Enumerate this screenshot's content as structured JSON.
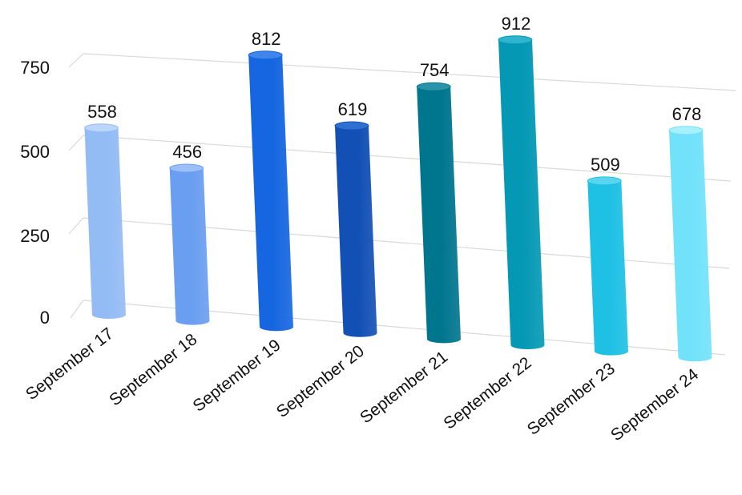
{
  "chart_data": {
    "type": "bar",
    "style": "3d-cylinder",
    "categories": [
      "September 17",
      "September 18",
      "September 19",
      "September 20",
      "September 21",
      "September 22",
      "September 23",
      "September 24"
    ],
    "values": [
      558,
      456,
      812,
      619,
      754,
      912,
      509,
      678
    ],
    "data_labels": [
      "558",
      "456",
      "812",
      "619",
      "754",
      "912",
      "509",
      "678"
    ],
    "yticks": [
      0,
      250,
      500,
      750
    ],
    "ytick_labels": [
      "0",
      "250",
      "500",
      "750"
    ],
    "ylim": [
      0,
      1000
    ],
    "grid": true,
    "legend": "none",
    "colors": [
      "#93bbf4",
      "#6a9ef0",
      "#1566e0",
      "#1250b5",
      "#00758e",
      "#0598b5",
      "#1ec0e4",
      "#72e2fa"
    ],
    "top_colors": [
      "#bcd5fa",
      "#9bc0f7",
      "#3f85ec",
      "#2f6fd0",
      "#2a93a8",
      "#2eb4cc",
      "#59d5f0",
      "#a8f0fd"
    ]
  }
}
